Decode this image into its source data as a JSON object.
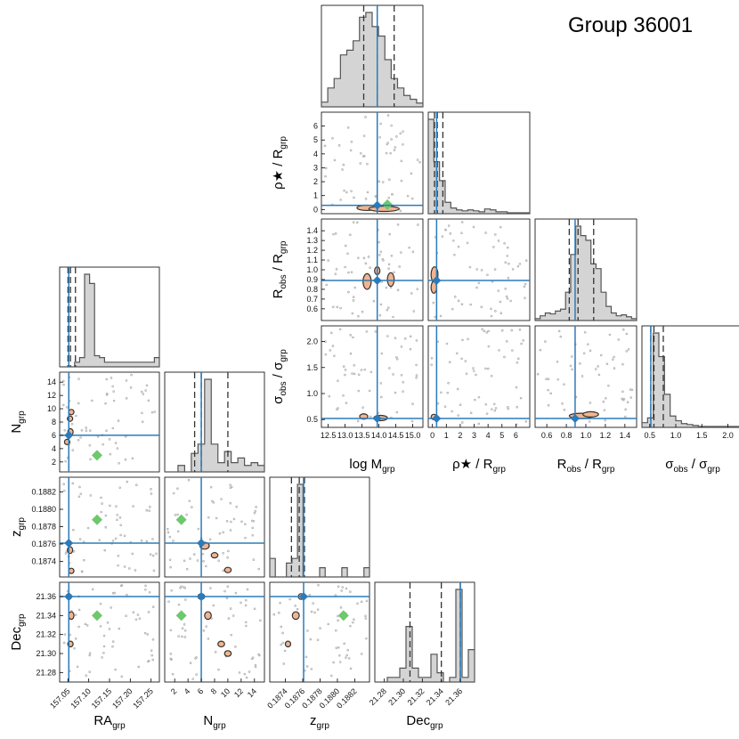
{
  "title": "Group 36001",
  "colors": {
    "truth_line": "#2b7bba",
    "median_point": "#2b7bba",
    "alt_point": "#6cc96c",
    "hist_fill": "#d4d4d4",
    "hist_edge": "#555555",
    "contour_fill": "#f2b48f",
    "contour_edge": "#333333",
    "samples": "#b0b0b0"
  },
  "chart_data": [
    {
      "type": "corner",
      "name": "group-parameters",
      "params": [
        {
          "key": "lm",
          "label": "log M",
          "sub": "grp",
          "range": [
            12.3,
            15.3
          ],
          "ticks": [
            12.5,
            13.0,
            13.5,
            14.0,
            14.5,
            15.0
          ],
          "tick_labels": [
            "12.5",
            "13.0",
            "13.5",
            "14.0",
            "14.5",
            "15.0"
          ],
          "truth": 13.95,
          "quantiles": [
            13.55,
            13.95,
            14.45
          ],
          "hist": [
            0.05,
            0.2,
            0.3,
            0.55,
            0.6,
            0.7,
            0.95,
            1.0,
            0.85,
            0.75,
            0.5,
            0.3,
            0.2,
            0.12,
            0.08,
            0.04
          ]
        },
        {
          "key": "rho",
          "label": "ρ★ / R",
          "sub": "grp",
          "range": [
            -0.3,
            7.0
          ],
          "ticks": [
            0,
            1,
            2,
            3,
            4,
            5,
            6
          ],
          "tick_labels": [
            "0",
            "1",
            "2",
            "3",
            "4",
            "5",
            "6"
          ],
          "truth": 0.3,
          "quantiles": [
            0.15,
            0.35,
            0.75
          ],
          "hist": [
            1.0,
            0.55,
            0.35,
            0.12,
            0.06,
            0.04,
            0.03,
            0.04,
            0.03,
            0.02,
            0.05,
            0.04,
            0.02,
            0.02,
            0.01,
            0.01,
            0.01,
            0.01
          ]
        },
        {
          "key": "robs",
          "label": "R",
          "sub_main": "obs",
          "label2": " / R",
          "sub": "grp",
          "range": [
            0.48,
            1.52
          ],
          "ticks": [
            0.6,
            0.8,
            1.0,
            1.2,
            1.4
          ],
          "tick_labels": [
            "0.6",
            "0.8",
            "1.0",
            "1.2",
            "1.4"
          ],
          "ticks_y": [
            0.6,
            0.7,
            0.8,
            0.9,
            1.0,
            1.1,
            1.2,
            1.3,
            1.4
          ],
          "tick_labels_y": [
            "0.6",
            "0.7",
            "0.8",
            "0.9",
            "1.0",
            "1.1",
            "1.2",
            "1.3",
            "1.4"
          ],
          "truth": 0.89,
          "quantiles": [
            0.83,
            0.92,
            1.08
          ],
          "hist": [
            0.02,
            0.05,
            0.08,
            0.07,
            0.1,
            0.12,
            0.3,
            0.7,
            1.0,
            0.9,
            0.85,
            0.6,
            0.55,
            0.3,
            0.15,
            0.08,
            0.05,
            0.06,
            0.04,
            0.02
          ]
        },
        {
          "key": "sig",
          "label": "σ",
          "sub_main": "obs",
          "label2": " / σ",
          "sub": "grp",
          "range": [
            0.35,
            2.3
          ],
          "ticks": [
            0.5,
            1.0,
            1.5,
            2.0
          ],
          "tick_labels": [
            "0.5",
            "1.0",
            "1.5",
            "2.0"
          ],
          "truth": 0.52,
          "quantiles": [
            0.52,
            0.58,
            0.76
          ],
          "hist": [
            0.05,
            0.1,
            1.0,
            0.75,
            0.35,
            0.12,
            0.07,
            0.04,
            0.03,
            0.02,
            0.01,
            0.01,
            0.01,
            0.01,
            0.01,
            0.01,
            0.01,
            0.01
          ]
        }
      ],
      "contours": [
        {
          "pair": [
            "lm",
            "rho"
          ],
          "regions": [
            [
              13.65,
              0.12,
              0.3,
              0.15
            ],
            [
              14.15,
              0.05,
              0.45,
              0.08
            ]
          ],
          "alt_point": [
            14.25,
            0.35
          ]
        },
        {
          "pair": [
            "lm",
            "robs"
          ],
          "regions": [
            [
              13.65,
              0.88,
              0.12,
              0.08
            ],
            [
              14.35,
              0.9,
              0.1,
              0.07
            ],
            [
              13.95,
              0.99,
              0.07,
              0.04
            ]
          ]
        },
        {
          "pair": [
            "lm",
            "sig"
          ],
          "regions": [
            [
              13.55,
              0.56,
              0.12,
              0.04
            ],
            [
              14.05,
              0.53,
              0.2,
              0.04
            ]
          ]
        },
        {
          "pair": [
            "rho",
            "robs"
          ],
          "regions": [
            [
              0.15,
              0.95,
              0.25,
              0.08
            ],
            [
              0.1,
              0.82,
              0.2,
              0.06
            ]
          ]
        },
        {
          "pair": [
            "rho",
            "sig"
          ],
          "regions": [
            [
              0.1,
              0.55,
              0.15,
              0.05
            ]
          ]
        },
        {
          "pair": [
            "robs",
            "sig"
          ],
          "regions": [
            [
              0.95,
              0.57,
              0.12,
              0.05
            ],
            [
              1.05,
              0.6,
              0.08,
              0.04
            ]
          ]
        }
      ]
    },
    {
      "type": "corner",
      "name": "group-position",
      "params": [
        {
          "key": "ra",
          "label": "RA",
          "sub": "grp",
          "range": [
            157.03,
            157.27
          ],
          "ticks": [
            157.05,
            157.1,
            157.15,
            157.2,
            157.25
          ],
          "tick_labels": [
            "157.05",
            "157.10",
            "157.15",
            "157.20",
            "157.25"
          ],
          "truth": 157.052,
          "quantiles": [
            157.05,
            157.056,
            157.068
          ],
          "hist": [
            0.0,
            0.0,
            0.0,
            0.05,
            0.1,
            1.0,
            0.9,
            0.12,
            0.1,
            0.05,
            0.05,
            0.05,
            0.05,
            0.05,
            0.05,
            0.05,
            0.05,
            0.05,
            0.05,
            0.1
          ]
        },
        {
          "key": "n",
          "label": "N",
          "sub": "grp",
          "range": [
            0.5,
            15.5
          ],
          "ticks": [
            2,
            4,
            6,
            8,
            10,
            12,
            14
          ],
          "tick_labels": [
            "2",
            "4",
            "6",
            "8",
            "10",
            "12",
            "14"
          ],
          "truth": 6.0,
          "quantiles": [
            5.0,
            6.0,
            10.0
          ],
          "hist": [
            0.0,
            0.0,
            0.07,
            0.0,
            0.2,
            0.3,
            1.0,
            0.3,
            0.1,
            0.22,
            0.1,
            0.15,
            0.07,
            0.1,
            0.07
          ]
        },
        {
          "key": "z",
          "label": "z",
          "sub": "grp",
          "range": [
            0.18722,
            0.18837
          ],
          "ticks": [
            0.1874,
            0.1876,
            0.1878,
            0.188,
            0.1882
          ],
          "tick_labels": [
            "0.1874",
            "0.1876",
            "0.1878",
            "0.1880",
            "0.1882"
          ],
          "truth": 0.18761,
          "quantiles": [
            0.18747,
            0.18756,
            0.18762
          ],
          "hist": [
            0.2,
            0.0,
            0.0,
            0.15,
            0.2,
            1.0,
            0.0,
            0.0,
            0.0,
            0.1,
            0.0,
            0.0,
            0.0,
            0.1,
            0.0,
            0.0,
            0.0,
            0.1
          ]
        },
        {
          "key": "dec",
          "label": "Dec",
          "sub": "grp",
          "range": [
            21.27,
            21.375
          ],
          "ticks": [
            21.28,
            21.3,
            21.32,
            21.34,
            21.36
          ],
          "tick_labels": [
            "21.28",
            "21.30",
            "21.32",
            "21.34",
            "21.36"
          ],
          "ticks_y": [
            21.28,
            21.3,
            21.32,
            21.34,
            21.36
          ],
          "tick_labels_y": [
            "21.28",
            "21.30",
            "21.32",
            "21.34",
            "21.36"
          ],
          "truth": 21.36,
          "quantiles": [
            21.307,
            21.34,
            21.36
          ],
          "hist": [
            0.0,
            0.0,
            0.05,
            0.05,
            0.15,
            0.6,
            0.15,
            0.05,
            0.05,
            0.3,
            0.1,
            0.0,
            0.05,
            1.0,
            0.05,
            0.35
          ]
        }
      ],
      "contours": [
        {
          "pair": [
            "ra",
            "n"
          ],
          "regions": [
            [
              157.056,
              6.5,
              0.004,
              0.5
            ],
            [
              157.055,
              8.5,
              0.003,
              0.4
            ],
            [
              157.058,
              9.5,
              0.003,
              0.4
            ],
            [
              157.048,
              5.0,
              0.003,
              0.3
            ]
          ],
          "alt_point": [
            157.12,
            3.0
          ]
        },
        {
          "pair": [
            "ra",
            "z"
          ],
          "regions": [
            [
              157.055,
              0.18753,
              0.004,
              4e-05
            ],
            [
              157.058,
              0.18729,
              0.003,
              3e-05
            ]
          ],
          "alt_point": [
            157.12,
            0.18788
          ]
        },
        {
          "pair": [
            "n",
            "z"
          ],
          "regions": [
            [
              6.5,
              0.18758,
              0.7,
              4e-05
            ],
            [
              8.0,
              0.18747,
              0.5,
              3e-05
            ],
            [
              10.0,
              0.1873,
              0.5,
              3e-05
            ]
          ],
          "alt_point": [
            3.0,
            0.18788
          ]
        },
        {
          "pair": [
            "ra",
            "dec"
          ],
          "regions": [
            [
              157.058,
              21.34,
              0.004,
              0.004
            ],
            [
              157.056,
              21.31,
              0.003,
              0.003
            ],
            [
              157.052,
              21.36,
              0.003,
              0.003
            ]
          ],
          "alt_point": [
            157.12,
            21.34
          ]
        },
        {
          "pair": [
            "n",
            "dec"
          ],
          "regions": [
            [
              6.0,
              21.36,
              0.5,
              0.003
            ],
            [
              7.0,
              21.34,
              0.5,
              0.004
            ],
            [
              9.0,
              21.31,
              0.5,
              0.003
            ],
            [
              10.0,
              21.3,
              0.5,
              0.003
            ]
          ],
          "alt_point": [
            3.0,
            21.34
          ]
        },
        {
          "pair": [
            "z",
            "dec"
          ],
          "regions": [
            [
              0.18752,
              21.34,
              4e-05,
              0.004
            ],
            [
              0.18743,
              21.31,
              3e-05,
              0.003
            ],
            [
              0.18758,
              21.36,
              3e-05,
              0.003
            ]
          ],
          "alt_point": [
            0.18807,
            21.34
          ]
        }
      ]
    }
  ]
}
